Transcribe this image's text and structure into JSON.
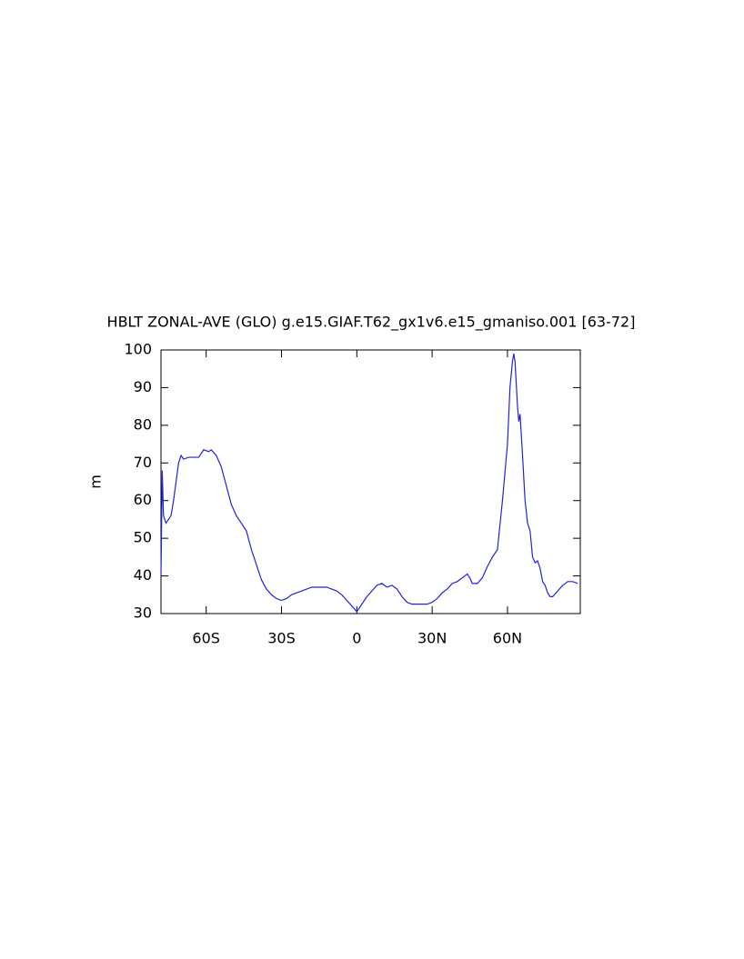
{
  "chart_data": {
    "type": "line",
    "title": "HBLT ZONAL-AVE (GLO) g.e15.GIAF.T62_gx1v6.e15_gmaniso.001 [63-72]",
    "y_label": "m",
    "xlim": [
      -78,
      89
    ],
    "ylim": [
      30,
      100
    ],
    "xticks": [
      {
        "value": -60,
        "label": "60S"
      },
      {
        "value": -30,
        "label": "30S"
      },
      0,
      {
        "value": 30,
        "label": "30N"
      },
      {
        "value": 60,
        "label": "60N"
      }
    ],
    "yticks": [
      30,
      40,
      50,
      60,
      70,
      80,
      90,
      100
    ],
    "x": [
      -78,
      -77.5,
      -77,
      -76,
      -74,
      -73,
      -71,
      -70,
      -69,
      -67,
      -65,
      -63,
      -61,
      -59,
      -58,
      -56,
      -54,
      -52,
      -50,
      -48,
      -46,
      -44,
      -42,
      -40,
      -38,
      -36,
      -34,
      -32,
      -30,
      -28,
      -26,
      -24,
      -22,
      -20,
      -18,
      -16,
      -14,
      -12,
      -10,
      -8,
      -6,
      -4,
      -2,
      0,
      2,
      4,
      6,
      8,
      10,
      12,
      14,
      16,
      18,
      20,
      22,
      24,
      26,
      28,
      30,
      32,
      34,
      36,
      38,
      40,
      42,
      44,
      45,
      46,
      48,
      50,
      52,
      54,
      56,
      58,
      60,
      61,
      62,
      62.5,
      63,
      64,
      64.5,
      65,
      66,
      67,
      68,
      69,
      70,
      71,
      72,
      73,
      74,
      75,
      76,
      77,
      78,
      80,
      82,
      84,
      86,
      88
    ],
    "series": [
      {
        "color": "#2222dd",
        "values": [
          40,
          68,
          56,
          54,
          56,
          60,
          70,
          72,
          71,
          71.5,
          71.5,
          71.5,
          73.5,
          73,
          73.5,
          72,
          69,
          64,
          59,
          56,
          54,
          52,
          47,
          43,
          39,
          36.5,
          35,
          34,
          33.5,
          34,
          35,
          35.5,
          36,
          36.5,
          37,
          37,
          37,
          37,
          36.5,
          36,
          35,
          33.5,
          32,
          30.5,
          32.5,
          34.5,
          36,
          37.5,
          38,
          37,
          37.5,
          36.5,
          34.5,
          33,
          32.5,
          32.5,
          32.5,
          32.5,
          33,
          34,
          35.5,
          36.5,
          38,
          38.5,
          39.5,
          40.5,
          39.5,
          38,
          38,
          39.5,
          42.5,
          45,
          47,
          60,
          75,
          90,
          97,
          99,
          97,
          85,
          81,
          83,
          72,
          60,
          54,
          52,
          45,
          43.5,
          44,
          42,
          38.5,
          37.5,
          35.5,
          34.5,
          34.5,
          36,
          37.5,
          38.5,
          38.5,
          38
        ]
      }
    ]
  }
}
